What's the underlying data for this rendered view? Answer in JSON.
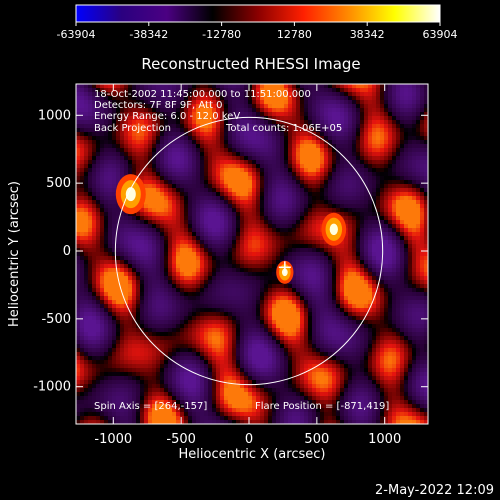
{
  "chart_data": {
    "type": "heatmap",
    "title": "Reconstructed RHESSI Image",
    "xlabel": "Heliocentric X (arcsec)",
    "ylabel": "Heliocentric Y (arcsec)",
    "xlim": [
      -1300,
      1300
    ],
    "ylim": [
      -1300,
      1300
    ],
    "xticks": [
      -1000,
      -500,
      0,
      500,
      1000
    ],
    "yticks": [
      -1000,
      -500,
      0,
      500,
      1000
    ],
    "colorbar": {
      "min": -63904,
      "max": 63904,
      "ticks": [
        -63904,
        -38342,
        -12780,
        12780,
        38342,
        63904
      ],
      "colormap": [
        "#0000ff",
        "#2a0080",
        "#4b0082",
        "#000000",
        "#8b0000",
        "#ff2000",
        "#ff8c00",
        "#ffff00",
        "#ffffff"
      ]
    },
    "annotations": [
      "18-Oct-2002 11:45:00.000 to 11:51:00.000",
      "Detectors: 7F 8F 9F, Att 0",
      "Energy Range: 6.0 - 12.0 keV",
      "Back Projection",
      "Total counts: 1.06E+05",
      "Spin Axis = [264,-157]",
      "Flare Position = [-871,419]"
    ],
    "solar_limb_radius_arcsec": 985,
    "sources": [
      {
        "x": -871,
        "y": 419,
        "peak": 63904
      },
      {
        "x": 625,
        "y": 160,
        "peak": 50000
      },
      {
        "x": 264,
        "y": -157,
        "peak": 30000
      }
    ],
    "marker": {
      "x": 264,
      "y": -120,
      "symbol": "+"
    }
  },
  "footer": {
    "timestamp": "2-May-2022 12:09"
  },
  "colors": {
    "background": "#000000",
    "text": "#ffffff",
    "limb": "#ffffff"
  }
}
